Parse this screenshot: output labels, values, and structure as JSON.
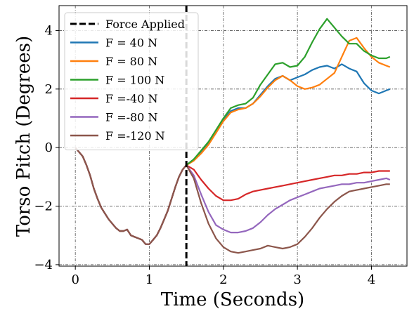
{
  "chart_data": {
    "type": "line",
    "xlabel": "Time (Seconds)",
    "ylabel": "Torso Pitch (Degrees)",
    "xlim": [
      -0.22,
      4.48
    ],
    "ylim": [
      -4.05,
      4.85
    ],
    "xticks": [
      0,
      1,
      2,
      3,
      4
    ],
    "yticks": [
      -4,
      -2,
      0,
      2,
      4
    ],
    "xtick_labels": [
      "0",
      "1",
      "2",
      "3",
      "4"
    ],
    "ytick_labels": [
      "−4",
      "−2",
      "0",
      "2",
      "4"
    ],
    "grid": true,
    "legend_position": "upper-left",
    "force_applied": {
      "name": "Force Applied",
      "x": 1.5,
      "color": "#000000"
    },
    "baseline": {
      "t": [
        0,
        0.05,
        0.1,
        0.15,
        0.2,
        0.25,
        0.3,
        0.35,
        0.4,
        0.45,
        0.5,
        0.55,
        0.6,
        0.65,
        0.7,
        0.75,
        0.8,
        0.85,
        0.9,
        0.95,
        1.0,
        1.05,
        1.1,
        1.15,
        1.2,
        1.25,
        1.3,
        1.35,
        1.4,
        1.45,
        1.5
      ],
      "y": [
        0,
        -0.15,
        -0.3,
        -0.6,
        -0.95,
        -1.4,
        -1.75,
        -2.05,
        -2.25,
        -2.45,
        -2.6,
        -2.75,
        -2.85,
        -2.85,
        -2.8,
        -3.0,
        -3.05,
        -3.1,
        -3.15,
        -3.3,
        -3.3,
        -3.15,
        -3.0,
        -2.75,
        -2.45,
        -2.15,
        -1.75,
        -1.35,
        -1.0,
        -0.75,
        -0.6
      ]
    },
    "series": [
      {
        "name": "F = 40 N",
        "color": "#1f77b4",
        "t": [
          1.5,
          1.6,
          1.7,
          1.8,
          1.9,
          2.0,
          2.1,
          2.2,
          2.3,
          2.4,
          2.5,
          2.6,
          2.7,
          2.8,
          2.9,
          3.0,
          3.1,
          3.2,
          3.3,
          3.4,
          3.5,
          3.6,
          3.7,
          3.8,
          3.9,
          4.0,
          4.1,
          4.2,
          4.25
        ],
        "y": [
          -0.6,
          -0.4,
          -0.15,
          0.15,
          0.5,
          0.95,
          1.25,
          1.35,
          1.35,
          1.5,
          1.8,
          2.1,
          2.35,
          2.45,
          2.3,
          2.4,
          2.5,
          2.65,
          2.75,
          2.8,
          2.7,
          2.85,
          2.7,
          2.6,
          2.2,
          1.95,
          1.85,
          1.95,
          2.0
        ]
      },
      {
        "name": "F = 80 N",
        "color": "#ff7f0e",
        "t": [
          1.5,
          1.6,
          1.7,
          1.8,
          1.9,
          2.0,
          2.1,
          2.2,
          2.3,
          2.4,
          2.5,
          2.6,
          2.7,
          2.8,
          2.9,
          3.0,
          3.1,
          3.2,
          3.3,
          3.4,
          3.5,
          3.6,
          3.7,
          3.8,
          3.9,
          4.0,
          4.1,
          4.2,
          4.25
        ],
        "y": [
          -0.6,
          -0.45,
          -0.2,
          0.1,
          0.5,
          0.9,
          1.2,
          1.3,
          1.35,
          1.5,
          1.75,
          2.05,
          2.3,
          2.45,
          2.3,
          2.1,
          2.0,
          2.05,
          2.15,
          2.35,
          2.55,
          3.1,
          3.65,
          3.75,
          3.4,
          3.1,
          2.9,
          2.8,
          2.75
        ]
      },
      {
        "name": "F = 100 N",
        "color": "#2ca02c",
        "t": [
          1.5,
          1.6,
          1.7,
          1.8,
          1.9,
          2.0,
          2.1,
          2.2,
          2.3,
          2.4,
          2.5,
          2.6,
          2.7,
          2.8,
          2.9,
          3.0,
          3.1,
          3.2,
          3.3,
          3.4,
          3.5,
          3.6,
          3.7,
          3.8,
          3.9,
          4.0,
          4.1,
          4.2,
          4.25
        ],
        "y": [
          -0.6,
          -0.4,
          -0.1,
          0.2,
          0.6,
          1.0,
          1.35,
          1.45,
          1.5,
          1.7,
          2.15,
          2.5,
          2.85,
          2.9,
          2.75,
          2.8,
          3.1,
          3.6,
          4.05,
          4.4,
          4.1,
          3.8,
          3.55,
          3.55,
          3.3,
          3.15,
          3.05,
          3.05,
          3.1
        ]
      },
      {
        "name": "F =-40 N",
        "color": "#d62728",
        "t": [
          1.5,
          1.6,
          1.7,
          1.8,
          1.9,
          2.0,
          2.1,
          2.2,
          2.3,
          2.4,
          2.5,
          2.6,
          2.7,
          2.8,
          2.9,
          3.0,
          3.1,
          3.2,
          3.3,
          3.4,
          3.5,
          3.6,
          3.7,
          3.8,
          3.9,
          4.0,
          4.1,
          4.2,
          4.25
        ],
        "y": [
          -0.6,
          -0.75,
          -1.1,
          -1.4,
          -1.65,
          -1.8,
          -1.8,
          -1.75,
          -1.6,
          -1.5,
          -1.45,
          -1.4,
          -1.35,
          -1.3,
          -1.25,
          -1.2,
          -1.15,
          -1.1,
          -1.05,
          -1.0,
          -0.95,
          -0.95,
          -0.9,
          -0.9,
          -0.85,
          -0.85,
          -0.8,
          -0.8,
          -0.8
        ]
      },
      {
        "name": "F =-80 N",
        "color": "#9467bd",
        "t": [
          1.5,
          1.6,
          1.7,
          1.8,
          1.9,
          2.0,
          2.1,
          2.2,
          2.3,
          2.4,
          2.5,
          2.6,
          2.7,
          2.8,
          2.9,
          3.0,
          3.1,
          3.2,
          3.3,
          3.4,
          3.5,
          3.6,
          3.7,
          3.8,
          3.9,
          4.0,
          4.1,
          4.2,
          4.25
        ],
        "y": [
          -0.6,
          -0.95,
          -1.6,
          -2.2,
          -2.65,
          -2.8,
          -2.9,
          -2.9,
          -2.85,
          -2.75,
          -2.55,
          -2.3,
          -2.1,
          -1.95,
          -1.8,
          -1.7,
          -1.6,
          -1.5,
          -1.4,
          -1.35,
          -1.3,
          -1.25,
          -1.25,
          -1.2,
          -1.2,
          -1.15,
          -1.1,
          -1.05,
          -1.1
        ]
      },
      {
        "name": "F =-120 N",
        "color": "#8c564b",
        "t": [
          1.5,
          1.6,
          1.7,
          1.8,
          1.9,
          2.0,
          2.1,
          2.2,
          2.3,
          2.4,
          2.5,
          2.6,
          2.7,
          2.8,
          2.9,
          3.0,
          3.1,
          3.2,
          3.3,
          3.4,
          3.5,
          3.6,
          3.7,
          3.8,
          3.9,
          4.0,
          4.1,
          4.2,
          4.25
        ],
        "y": [
          -0.6,
          -1.05,
          -1.9,
          -2.6,
          -3.1,
          -3.4,
          -3.55,
          -3.6,
          -3.55,
          -3.5,
          -3.45,
          -3.35,
          -3.4,
          -3.45,
          -3.4,
          -3.3,
          -3.05,
          -2.75,
          -2.4,
          -2.1,
          -1.85,
          -1.65,
          -1.5,
          -1.45,
          -1.4,
          -1.35,
          -1.3,
          -1.25,
          -1.25
        ]
      }
    ]
  }
}
